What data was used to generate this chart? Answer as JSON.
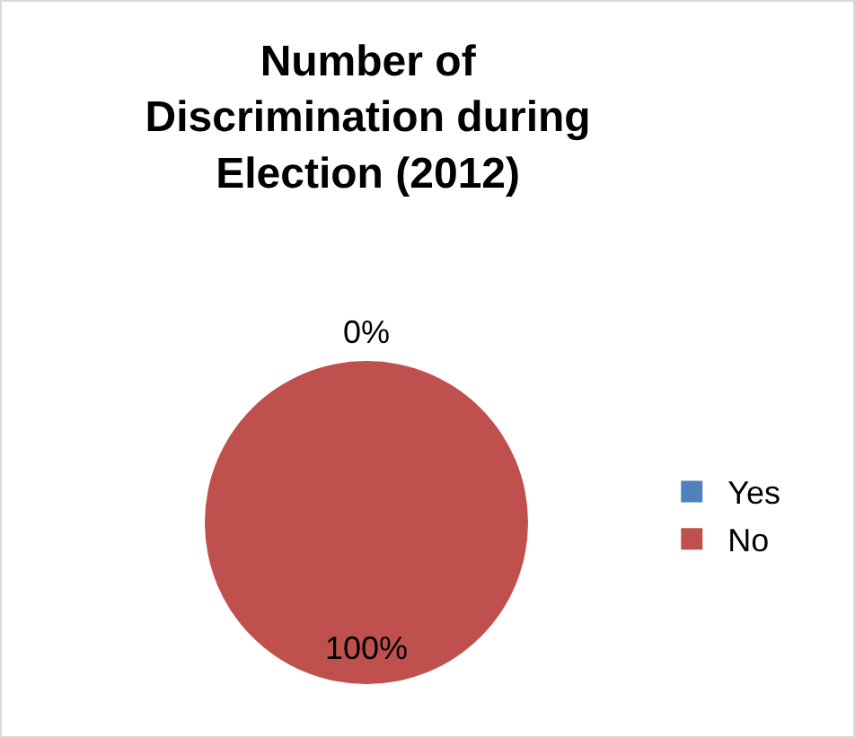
{
  "chart_data": {
    "type": "pie",
    "title": "Number of Discrimination during Election (2012)",
    "categories": [
      "Yes",
      "No"
    ],
    "values": [
      0,
      100
    ],
    "colors": [
      "#4f81bd",
      "#c0504d"
    ],
    "value_labels": [
      "0%",
      "100%"
    ],
    "legend": "right"
  }
}
